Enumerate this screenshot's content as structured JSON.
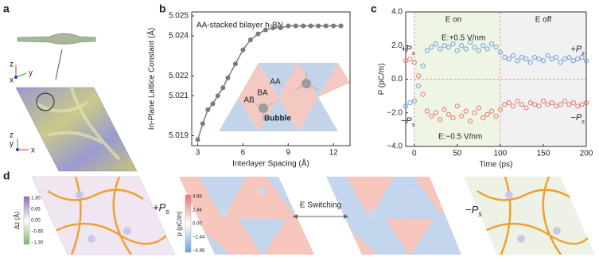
{
  "panel_labels": [
    "a",
    "b",
    "c",
    "d"
  ],
  "panel_a": {
    "axes_top": [
      "z",
      "y",
      "x"
    ],
    "axes_bottom": [
      "z",
      "y",
      "x"
    ]
  },
  "chart_data": [
    {
      "type": "line",
      "title": "AA-stacked bilayer h-BN",
      "x_label": "Interlayer Spacing (Å)",
      "y_label": "In-Plane Lattice Constant (Å)",
      "x": [
        3,
        3.33,
        3.67,
        4,
        4.33,
        4.67,
        5,
        5.5,
        6,
        6.5,
        7,
        7.5,
        8,
        8.5,
        9,
        9.5,
        10,
        10.5,
        11,
        11.5,
        12,
        12.5
      ],
      "values": [
        5.0188,
        5.0196,
        5.0203,
        5.0206,
        5.021,
        5.0214,
        5.0219,
        5.0226,
        5.0233,
        5.0238,
        5.0241,
        5.0243,
        5.0244,
        5.0244,
        5.0245,
        5.0245,
        5.0245,
        5.0245,
        5.0245,
        5.0245,
        5.0245,
        5.0245
      ],
      "color": "#7a7a7a",
      "xlim": [
        2.6,
        13.1
      ],
      "ylim": [
        5.0185,
        5.0252
      ],
      "xticks": [
        3,
        6,
        9,
        12
      ],
      "yticks": [
        5.025,
        5.024,
        5.022,
        5.021,
        5.019
      ],
      "inset_labels": [
        "AA",
        "BA",
        "AB",
        "Bubble"
      ]
    },
    {
      "type": "scatter",
      "x_label": "Time (ps)",
      "y_label": "P (pC/m)",
      "x": [
        -10,
        -5,
        0,
        5,
        10,
        15,
        20,
        25,
        30,
        35,
        40,
        45,
        50,
        55,
        60,
        65,
        70,
        75,
        80,
        85,
        90,
        95,
        100,
        105,
        110,
        115,
        120,
        125,
        130,
        135,
        140,
        145,
        150,
        155,
        160,
        165,
        170,
        175,
        180,
        185,
        190,
        195,
        200
      ],
      "series": [
        {
          "color": "#6e9fdc",
          "values": [
            -1.6,
            -1.4,
            -1.3,
            -0.4,
            0.8,
            1.7,
            1.9,
            2.1,
            1.8,
            2.0,
            1.9,
            2.1,
            1.7,
            2.0,
            1.8,
            2.2,
            1.9,
            1.7,
            2.0,
            1.8,
            2.1,
            1.9,
            1.6,
            1.3,
            1.2,
            1.4,
            1.1,
            1.3,
            1.2,
            1.0,
            1.3,
            1.2,
            1.1,
            1.4,
            1.2,
            1.3,
            1.0,
            1.2,
            1.3,
            1.1,
            1.2,
            1.3,
            1.1
          ]
        },
        {
          "color": "#e8766c",
          "values": [
            1.1,
            1.2,
            1.0,
            0.2,
            -0.9,
            -1.9,
            -2.2,
            -2.0,
            -2.4,
            -1.8,
            -2.1,
            -2.3,
            -1.6,
            -2.2,
            -1.9,
            -2.5,
            -2.0,
            -1.7,
            -2.3,
            -2.1,
            -1.9,
            -2.2,
            -1.8,
            -1.5,
            -1.4,
            -1.6,
            -1.3,
            -1.5,
            -1.7,
            -1.4,
            -1.5,
            -1.6,
            -1.3,
            -1.5,
            -1.4,
            -1.6,
            -1.5,
            -1.3,
            -1.5,
            -1.4,
            -1.6,
            -1.5,
            -1.4
          ]
        }
      ],
      "xlim": [
        -10,
        200
      ],
      "ylim": [
        -4,
        4
      ],
      "xticks": [
        0,
        50,
        100,
        150,
        200
      ],
      "yticks": [
        {
          "value": 4,
          "label": "4.0"
        },
        {
          "value": 2,
          "label": "2.0"
        },
        {
          "value": 0,
          "label": "0.0"
        },
        {
          "value": -2,
          "label": "−2.0"
        },
        {
          "value": -4,
          "label": "−4.0"
        }
      ],
      "regions": [
        {
          "x": [
            0,
            100
          ],
          "color": "#eef5e4"
        },
        {
          "x": [
            100,
            200
          ],
          "color": "#f1f1f1"
        }
      ],
      "region_labels": [
        "E on",
        "E off"
      ],
      "field_labels": [
        "E:+0.5 V/nm",
        "E:−0.5 V/nm"
      ],
      "polarization_labels": [
        {
          "main": "+P",
          "sub": "s"
        },
        {
          "main": "−P",
          "sub": "s"
        },
        {
          "main": "+P",
          "sub": "s"
        },
        {
          "main": "−P",
          "sub": "s"
        }
      ]
    }
  ],
  "panel_d": {
    "labels": [
      {
        "main": "+P",
        "sub": "s"
      },
      {
        "main": "−P",
        "sub": "s"
      }
    ],
    "switch_label": "E Switching",
    "colorbar_dz": {
      "label": "Δz (Å)",
      "ticks": [
        "1.30",
        "0.65",
        "0.00",
        "−0.65",
        "−1.30"
      ]
    },
    "colorbar_p": {
      "label": "p (pC/m)",
      "ticks": [
        "4.88",
        "2.44",
        "0.00",
        "−2.44",
        "−4.88"
      ]
    }
  }
}
